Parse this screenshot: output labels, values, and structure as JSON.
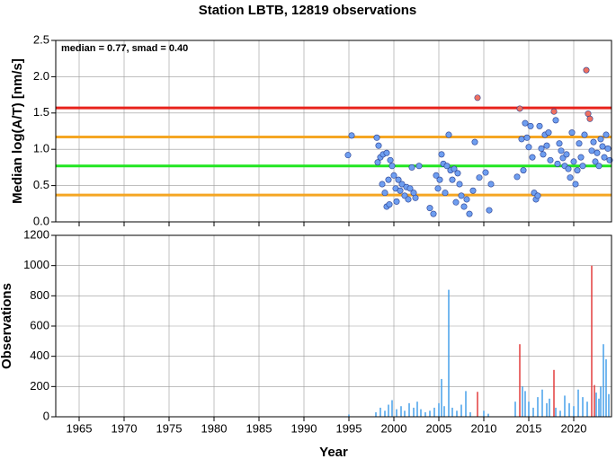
{
  "chart_data": [
    {
      "type": "scatter",
      "title": "Station LBTB, 12819 observations",
      "ylabel": "Median log(A/T) [nm/s]",
      "annotation": "median = 0.77, smad = 0.40",
      "xlim": [
        1962.4,
        2024.2
      ],
      "ylim": [
        0,
        2.5
      ],
      "yticks": [
        {
          "value": 0,
          "label": "0.0"
        },
        0.5,
        {
          "value": 1,
          "label": "1.0"
        },
        1.5,
        {
          "value": 2,
          "label": "2.0"
        },
        2.5
      ],
      "grid": true,
      "hlines": [
        {
          "value": 1.57,
          "color": "#e8231c"
        },
        {
          "value": 1.17,
          "color": "#f5a623"
        },
        {
          "value": 0.77,
          "color": "#22e622"
        },
        {
          "value": 0.37,
          "color": "#f5a623"
        }
      ],
      "series": [
        {
          "color": "#6e9ef0",
          "x": [
            1994.9,
            1995.3,
            1998.1,
            1998.3,
            1998.2,
            1998.5,
            1998.8,
            1999.2,
            1998.7,
            1999.0,
            1999.2,
            1999.4,
            1999.6,
            1999.8,
            2000.0,
            2000.2,
            1999.5,
            2000.3,
            2000.5,
            2000.7,
            2000.9,
            2001.2,
            2001.4,
            2001.6,
            2001.8,
            2002.0,
            2002.2,
            2002.4,
            2002.8,
            2004.0,
            2004.4,
            2004.7,
            2004.9,
            2005.1,
            2005.3,
            2005.5,
            2005.7,
            2005.9,
            2006.1,
            2006.3,
            2006.5,
            2006.7,
            2006.9,
            2007.1,
            2007.3,
            2007.5,
            2007.8,
            2008.1,
            2008.4,
            2008.8,
            2009.0,
            2009.5,
            2010.2,
            2010.6,
            2010.8,
            2013.7,
            2014.2,
            2014.4,
            2014.6,
            2014.8,
            2015.0,
            2015.2,
            2015.4,
            2015.6,
            2015.8,
            2016.0,
            2016.2,
            2016.4,
            2016.6,
            2016.8,
            2017.0,
            2017.2,
            2017.4,
            2018.0,
            2018.2,
            2018.4,
            2018.6,
            2018.8,
            2019.0,
            2019.2,
            2019.4,
            2019.6,
            2019.8,
            2020.0,
            2020.2,
            2020.4,
            2020.6,
            2020.8,
            2021.0,
            2021.2,
            2022.0,
            2022.2,
            2022.4,
            2022.6,
            2022.8,
            2023.0,
            2023.2,
            2023.4,
            2023.6,
            2023.8,
            2024.0
          ],
          "values": [
            0.92,
            1.19,
            1.16,
            1.05,
            0.82,
            0.89,
            0.93,
            0.95,
            0.52,
            0.4,
            0.21,
            0.58,
            0.85,
            0.77,
            0.64,
            0.46,
            0.24,
            0.28,
            0.58,
            0.43,
            0.52,
            0.36,
            0.48,
            0.31,
            0.46,
            0.75,
            0.4,
            0.33,
            0.77,
            0.19,
            0.11,
            0.64,
            0.46,
            0.58,
            0.93,
            0.8,
            0.4,
            0.77,
            1.2,
            0.71,
            0.58,
            0.73,
            0.27,
            0.67,
            0.52,
            0.36,
            0.21,
            0.31,
            0.11,
            0.43,
            1.1,
            0.61,
            0.68,
            0.16,
            0.52,
            0.62,
            1.14,
            0.71,
            1.36,
            1.16,
            1.03,
            1.32,
            0.89,
            0.4,
            0.31,
            0.36,
            1.32,
            1.01,
            0.93,
            1.2,
            1.05,
            1.23,
            0.85,
            1.4,
            0.8,
            1.08,
            0.98,
            0.88,
            0.77,
            0.93,
            0.73,
            0.61,
            1.23,
            0.83,
            0.52,
            0.71,
            1.08,
            0.89,
            0.77,
            1.2,
            0.98,
            1.1,
            0.83,
            0.95,
            0.77,
            1.14,
            1.04,
            0.89,
            1.2,
            1.01,
            0.85
          ]
        },
        {
          "color": "#f07060",
          "x": [
            2009.3,
            2014.0,
            2017.8,
            2021.4,
            2021.6,
            2021.8
          ],
          "values": [
            1.71,
            1.56,
            1.52,
            2.09,
            1.49,
            1.42
          ]
        }
      ]
    },
    {
      "type": "bar",
      "xlabel": "Year",
      "ylabel": "Observations",
      "xlim": [
        1962.4,
        2024.2
      ],
      "ylim": [
        0,
        1200
      ],
      "xticks": [
        1965,
        1970,
        1975,
        1980,
        1985,
        1990,
        1995,
        2000,
        2005,
        2010,
        2015,
        2020
      ],
      "yticks": [
        0,
        200,
        400,
        600,
        800,
        1000,
        1200
      ],
      "grid": true,
      "series": [
        {
          "color": "#3a9ae8",
          "x": [
            1995.0,
            1998.0,
            1998.5,
            1999.0,
            1999.4,
            1999.8,
            2000.3,
            2000.8,
            2001.2,
            2001.7,
            2002.2,
            2002.6,
            2003.0,
            2003.5,
            2004.0,
            2004.5,
            2005.0,
            2005.3,
            2005.6,
            2006.1,
            2006.5,
            2007.0,
            2007.5,
            2008.0,
            2008.5,
            2010.0,
            2010.5,
            2013.5,
            2014.3,
            2014.6,
            2015.0,
            2015.5,
            2016.0,
            2016.5,
            2017.0,
            2017.3,
            2018.0,
            2018.5,
            2019.0,
            2019.5,
            2020.0,
            2020.5,
            2021.0,
            2021.5,
            2022.5,
            2022.8,
            2023.0,
            2023.3,
            2023.6,
            2023.9
          ],
          "values": [
            15,
            30,
            60,
            40,
            80,
            110,
            50,
            70,
            40,
            90,
            60,
            100,
            50,
            30,
            40,
            60,
            90,
            250,
            70,
            840,
            60,
            40,
            80,
            170,
            30,
            40,
            20,
            100,
            200,
            170,
            100,
            60,
            130,
            180,
            90,
            120,
            60,
            40,
            140,
            90,
            70,
            180,
            130,
            100,
            160,
            120,
            200,
            480,
            380,
            150
          ]
        },
        {
          "color": "#e03030",
          "x": [
            2009.3,
            2014.0,
            2017.8,
            2022.0,
            2022.3
          ],
          "values": [
            165,
            480,
            310,
            1000,
            210
          ]
        }
      ]
    }
  ]
}
